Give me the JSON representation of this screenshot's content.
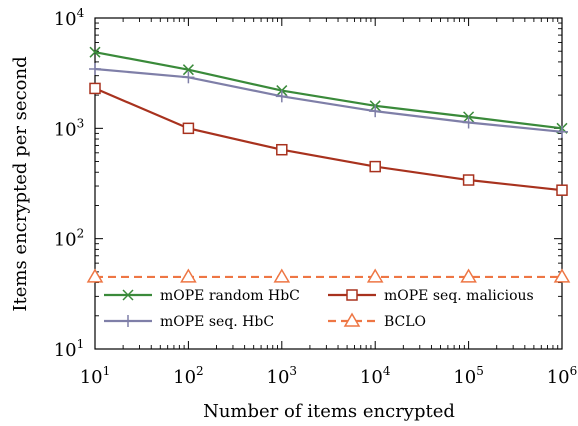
{
  "chart_data": {
    "type": "line",
    "xlabel": "Number of items encrypted",
    "ylabel": "Items encrypted per second",
    "xscale": "log",
    "yscale": "log",
    "xlim": [
      10,
      1000000
    ],
    "ylim": [
      10,
      10000
    ],
    "x_ticks": [
      {
        "base": "10",
        "exp": "1"
      },
      {
        "base": "10",
        "exp": "2"
      },
      {
        "base": "10",
        "exp": "3"
      },
      {
        "base": "10",
        "exp": "4"
      },
      {
        "base": "10",
        "exp": "5"
      },
      {
        "base": "10",
        "exp": "6"
      }
    ],
    "y_ticks": [
      {
        "base": "10",
        "exp": "1"
      },
      {
        "base": "10",
        "exp": "2"
      },
      {
        "base": "10",
        "exp": "3"
      },
      {
        "base": "10",
        "exp": "4"
      }
    ],
    "x_tick_values": [
      10,
      100,
      1000,
      10000,
      100000,
      1000000
    ],
    "y_tick_values": [
      10,
      100,
      1000,
      10000
    ],
    "grid": false,
    "legend_position": "bottom-inside",
    "x": [
      10,
      100,
      1000,
      10000,
      100000,
      1000000
    ],
    "series": [
      {
        "name": "mOPE random HbC",
        "values": [
          4900,
          3400,
          2200,
          1600,
          1270,
          1000
        ],
        "color": "#3a8a3a",
        "marker": "x",
        "dash": "solid"
      },
      {
        "name": "mOPE seq. HbC",
        "values": [
          3450,
          2900,
          1950,
          1430,
          1130,
          930
        ],
        "color": "#7f7fa8",
        "marker": "plus",
        "dash": "solid"
      },
      {
        "name": "mOPE seq. malicious",
        "values": [
          2300,
          1000,
          640,
          450,
          340,
          275
        ],
        "color": "#a8321e",
        "marker": "square",
        "dash": "solid"
      },
      {
        "name": "BCLO",
        "values": [
          45,
          45,
          45,
          45,
          45,
          45
        ],
        "color": "#ee7644",
        "marker": "triangle",
        "dash": "dashed"
      }
    ]
  }
}
